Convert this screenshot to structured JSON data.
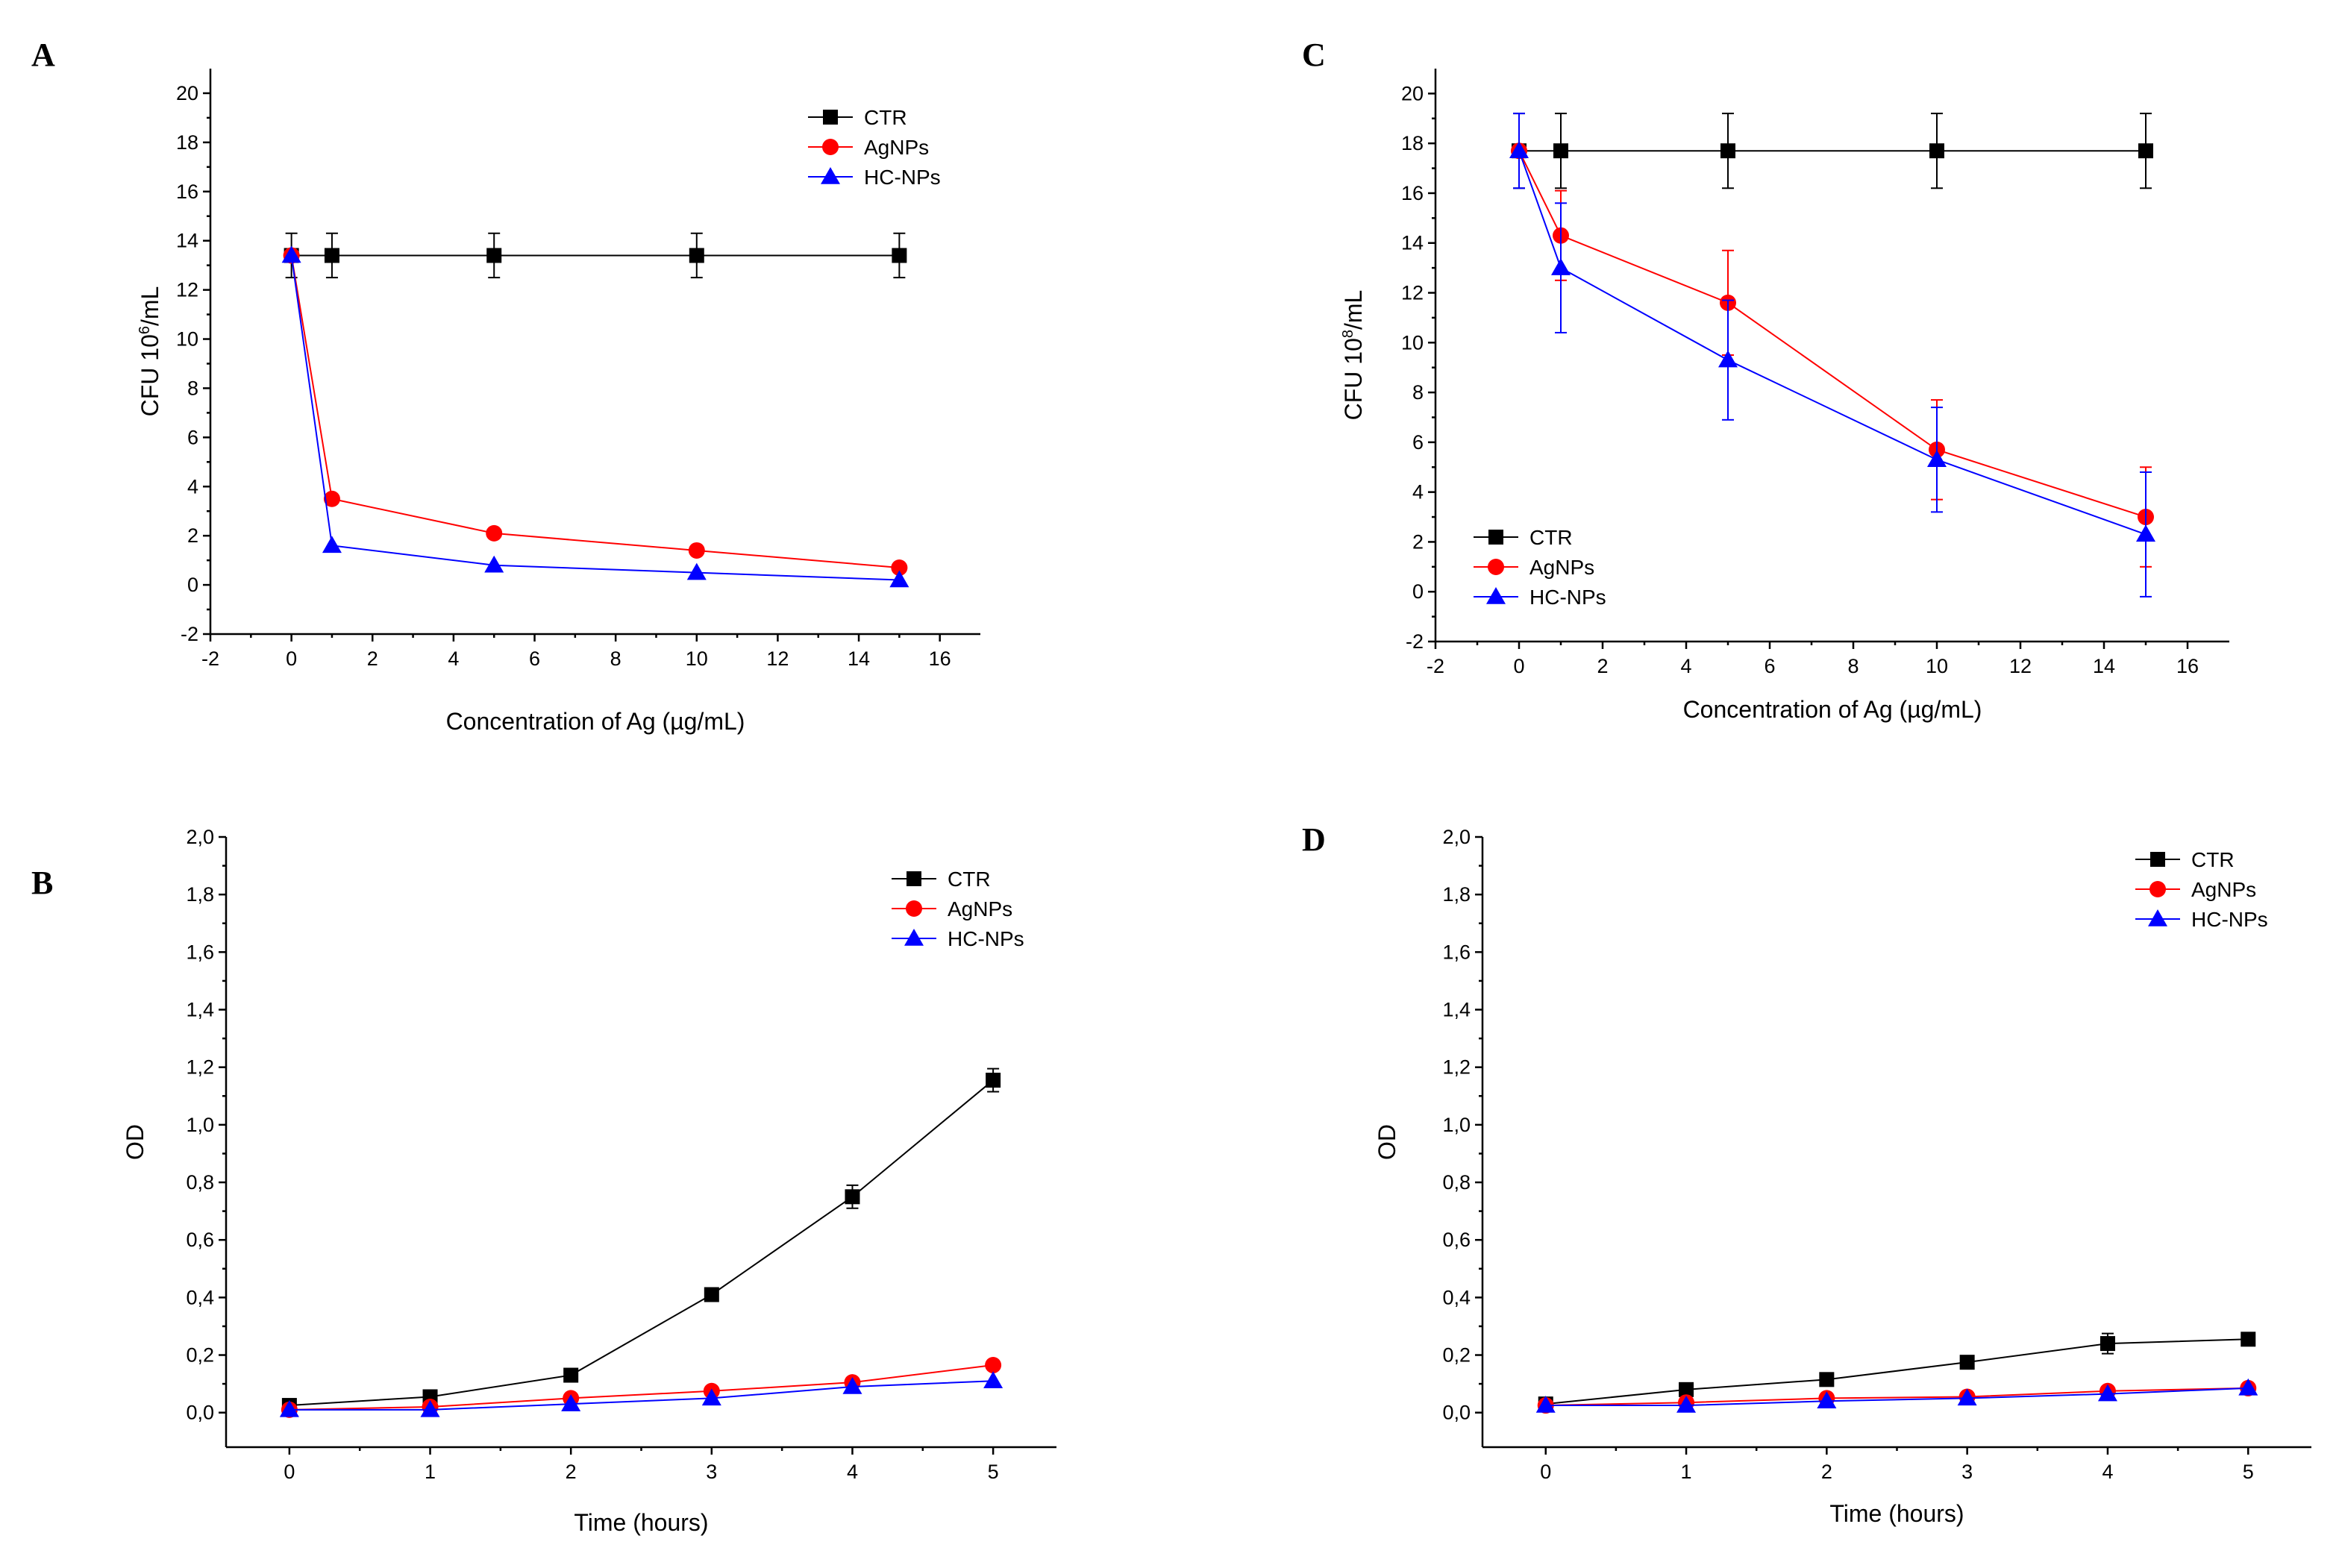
{
  "chart_data": [
    {
      "panel": "A",
      "type": "line",
      "xlabel": "Concentration of Ag (µg/mL)",
      "ylabel": "CFU 10⁶/mL",
      "ylabel_base": "CFU 10",
      "ylabel_sup": "6",
      "ylabel_unit": "/mL",
      "xlim": [
        -2,
        17
      ],
      "ylim": [
        -2,
        21
      ],
      "xticks": [
        "-2",
        "0",
        "2",
        "4",
        "6",
        "8",
        "10",
        "12",
        "14",
        "16"
      ],
      "yticks": [
        "-2",
        "0",
        "2",
        "4",
        "6",
        "8",
        "10",
        "12",
        "14",
        "16",
        "18",
        "20"
      ],
      "legend_position": "top-right",
      "series": [
        {
          "name": "CTR",
          "color": "#000000",
          "marker": "square",
          "x": [
            0,
            1,
            5,
            10,
            15
          ],
          "y": [
            13.4,
            13.4,
            13.4,
            13.4,
            13.4
          ],
          "err": [
            0.9,
            0.9,
            0.9,
            0.9,
            0.9
          ]
        },
        {
          "name": "AgNPs",
          "color": "#ff0000",
          "marker": "circle",
          "x": [
            0,
            1,
            5,
            10,
            15
          ],
          "y": [
            13.4,
            3.5,
            2.1,
            1.4,
            0.7
          ],
          "err": [
            0,
            0,
            0,
            0,
            0
          ]
        },
        {
          "name": "HC-NPs",
          "color": "#0000ff",
          "marker": "triangle",
          "x": [
            0,
            1,
            5,
            10,
            15
          ],
          "y": [
            13.4,
            1.6,
            0.8,
            0.5,
            0.2
          ],
          "err": [
            0,
            0,
            0,
            0,
            0
          ]
        }
      ]
    },
    {
      "panel": "B",
      "type": "line",
      "xlabel": "Time (hours)",
      "ylabel": "OD",
      "xlim": [
        -0.45,
        5.45
      ],
      "ylim": [
        -0.12,
        2.0
      ],
      "xticks": [
        "0",
        "1",
        "2",
        "3",
        "4",
        "5"
      ],
      "yticks": [
        "0,0",
        "0,2",
        "0,4",
        "0,6",
        "0,8",
        "1,0",
        "1,2",
        "1,4",
        "1,6",
        "1,8",
        "2,0"
      ],
      "legend_position": "top-right",
      "series": [
        {
          "name": "CTR",
          "color": "#000000",
          "marker": "square",
          "x": [
            0,
            1,
            2,
            3,
            4,
            5
          ],
          "y": [
            0.025,
            0.055,
            0.13,
            0.41,
            0.75,
            1.155
          ],
          "err": [
            0,
            0,
            0,
            0,
            0.04,
            0.04
          ]
        },
        {
          "name": "AgNPs",
          "color": "#ff0000",
          "marker": "circle",
          "x": [
            0,
            1,
            2,
            3,
            4,
            5
          ],
          "y": [
            0.01,
            0.02,
            0.05,
            0.075,
            0.105,
            0.165
          ],
          "err": [
            0,
            0,
            0,
            0,
            0,
            0
          ]
        },
        {
          "name": "HC-NPs",
          "color": "#0000ff",
          "marker": "triangle",
          "x": [
            0,
            1,
            2,
            3,
            4,
            5
          ],
          "y": [
            0.01,
            0.01,
            0.03,
            0.05,
            0.09,
            0.11
          ],
          "err": [
            0,
            0,
            0,
            0,
            0,
            0
          ]
        }
      ]
    },
    {
      "panel": "C",
      "type": "line",
      "xlabel": "Concentration of Ag (µg/mL)",
      "ylabel": "CFU 10⁸/mL",
      "ylabel_base": "CFU 10",
      "ylabel_sup": "8",
      "ylabel_unit": "/mL",
      "xlim": [
        -2,
        17
      ],
      "ylim": [
        -2,
        21
      ],
      "xticks": [
        "-2",
        "0",
        "2",
        "4",
        "6",
        "8",
        "10",
        "12",
        "14",
        "16"
      ],
      "yticks": [
        "-2",
        "0",
        "2",
        "4",
        "6",
        "8",
        "10",
        "12",
        "14",
        "16",
        "18",
        "20"
      ],
      "legend_position": "bottom-left",
      "series": [
        {
          "name": "CTR",
          "color": "#000000",
          "marker": "square",
          "x": [
            0,
            1,
            5,
            10,
            15
          ],
          "y": [
            17.7,
            17.7,
            17.7,
            17.7,
            17.7
          ],
          "err": [
            1.5,
            1.5,
            1.5,
            1.5,
            1.5
          ]
        },
        {
          "name": "AgNPs",
          "color": "#ff0000",
          "marker": "circle",
          "x": [
            0,
            1,
            5,
            10,
            15
          ],
          "y": [
            17.7,
            14.3,
            11.6,
            5.7,
            3.0
          ],
          "err": [
            0,
            1.8,
            2.1,
            2.0,
            2.0
          ]
        },
        {
          "name": "HC-NPs",
          "color": "#0000ff",
          "marker": "triangle",
          "x": [
            0,
            1,
            5,
            10,
            15
          ],
          "y": [
            17.7,
            13.0,
            9.3,
            5.3,
            2.3
          ],
          "err": [
            1.5,
            2.6,
            2.4,
            2.1,
            2.5
          ]
        }
      ]
    },
    {
      "panel": "D",
      "type": "line",
      "xlabel": "Time (hours)",
      "ylabel": "OD",
      "xlim": [
        -0.45,
        5.45
      ],
      "ylim": [
        -0.12,
        2.0
      ],
      "xticks": [
        "0",
        "1",
        "2",
        "3",
        "4",
        "5"
      ],
      "yticks": [
        "0,0",
        "0,2",
        "0,4",
        "0,6",
        "0,8",
        "1,0",
        "1,2",
        "1,4",
        "1,6",
        "1,8",
        "2,0"
      ],
      "legend_position": "top-right",
      "series": [
        {
          "name": "CTR",
          "color": "#000000",
          "marker": "square",
          "x": [
            0,
            1,
            2,
            3,
            4,
            5
          ],
          "y": [
            0.03,
            0.08,
            0.115,
            0.175,
            0.24,
            0.255
          ],
          "err": [
            0,
            0,
            0,
            0,
            0.035,
            0
          ]
        },
        {
          "name": "AgNPs",
          "color": "#ff0000",
          "marker": "circle",
          "x": [
            0,
            1,
            2,
            3,
            4,
            5
          ],
          "y": [
            0.025,
            0.035,
            0.05,
            0.055,
            0.075,
            0.085
          ],
          "err": [
            0,
            0,
            0,
            0,
            0,
            0
          ]
        },
        {
          "name": "HC-NPs",
          "color": "#0000ff",
          "marker": "triangle",
          "x": [
            0,
            1,
            2,
            3,
            4,
            5
          ],
          "y": [
            0.025,
            0.025,
            0.04,
            0.05,
            0.065,
            0.085
          ],
          "err": [
            0,
            0,
            0,
            0,
            0,
            0
          ]
        }
      ]
    }
  ]
}
